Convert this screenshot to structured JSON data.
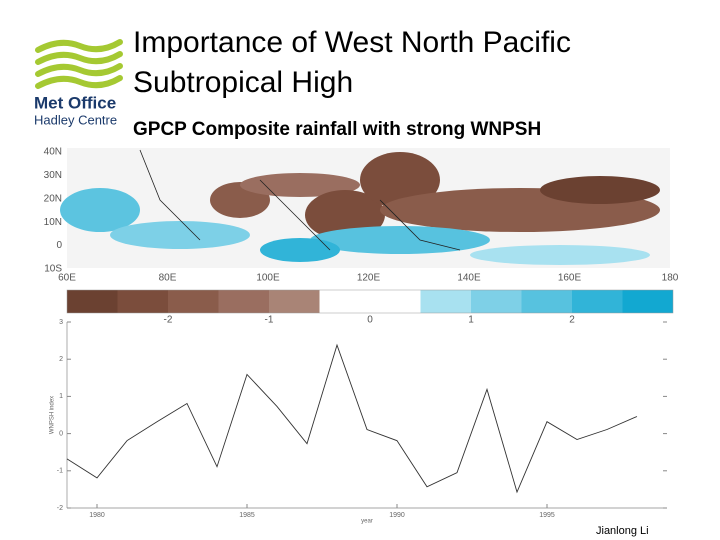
{
  "header": {
    "logo": [
      "Met Office",
      "Hadley Centre"
    ],
    "title": [
      "Importance of West North Pacific",
      "Subtropical High"
    ],
    "subtitle": "GPCP Composite rainfall with strong WNPSH"
  },
  "map": {
    "lat_labels": [
      "40N",
      "30N",
      "20N",
      "10N",
      "0",
      "10S"
    ],
    "lon_labels": [
      "60E",
      "80E",
      "100E",
      "120E",
      "140E",
      "160E",
      "180"
    ]
  },
  "colorbar": {
    "lim": [
      -3,
      3
    ],
    "colors": [
      "#6b4131",
      "#7b4d3c",
      "#8a5c4b",
      "#9a6e60",
      "#a98476",
      "#ffffff",
      "#ffffff",
      "#a8e1f0",
      "#7ed0e7",
      "#57c2df",
      "#31b4d8",
      "#12a8d1"
    ],
    "ticks": [
      -2,
      -1,
      0,
      1,
      2
    ]
  },
  "chart_data": {
    "type": "line",
    "x": [
      1979,
      1980,
      1981,
      1982,
      1983,
      1984,
      1985,
      1986,
      1987,
      1988,
      1989,
      1990,
      1991,
      1992,
      1993,
      1994,
      1995,
      1996,
      1997,
      1998
    ],
    "series": [
      {
        "name": "WNPSH index",
        "color": "#333333",
        "values": [
          -0.68,
          -1.19,
          -0.19,
          0.32,
          0.81,
          -0.89,
          1.59,
          0.73,
          -0.27,
          2.38,
          0.11,
          -0.19,
          -1.43,
          -1.05,
          1.19,
          -1.57,
          0.32,
          -0.16,
          0.11,
          0.46
        ]
      }
    ],
    "xlim": [
      1979,
      1999
    ],
    "xticks": [
      1980,
      1985,
      1990,
      1995
    ],
    "ylim": [
      -2,
      3
    ],
    "yticks": [
      -2,
      -1,
      0,
      1,
      2,
      3
    ],
    "xlabel": "year",
    "ylabel": "WNPSH index"
  },
  "footer": "Jianlong Li"
}
